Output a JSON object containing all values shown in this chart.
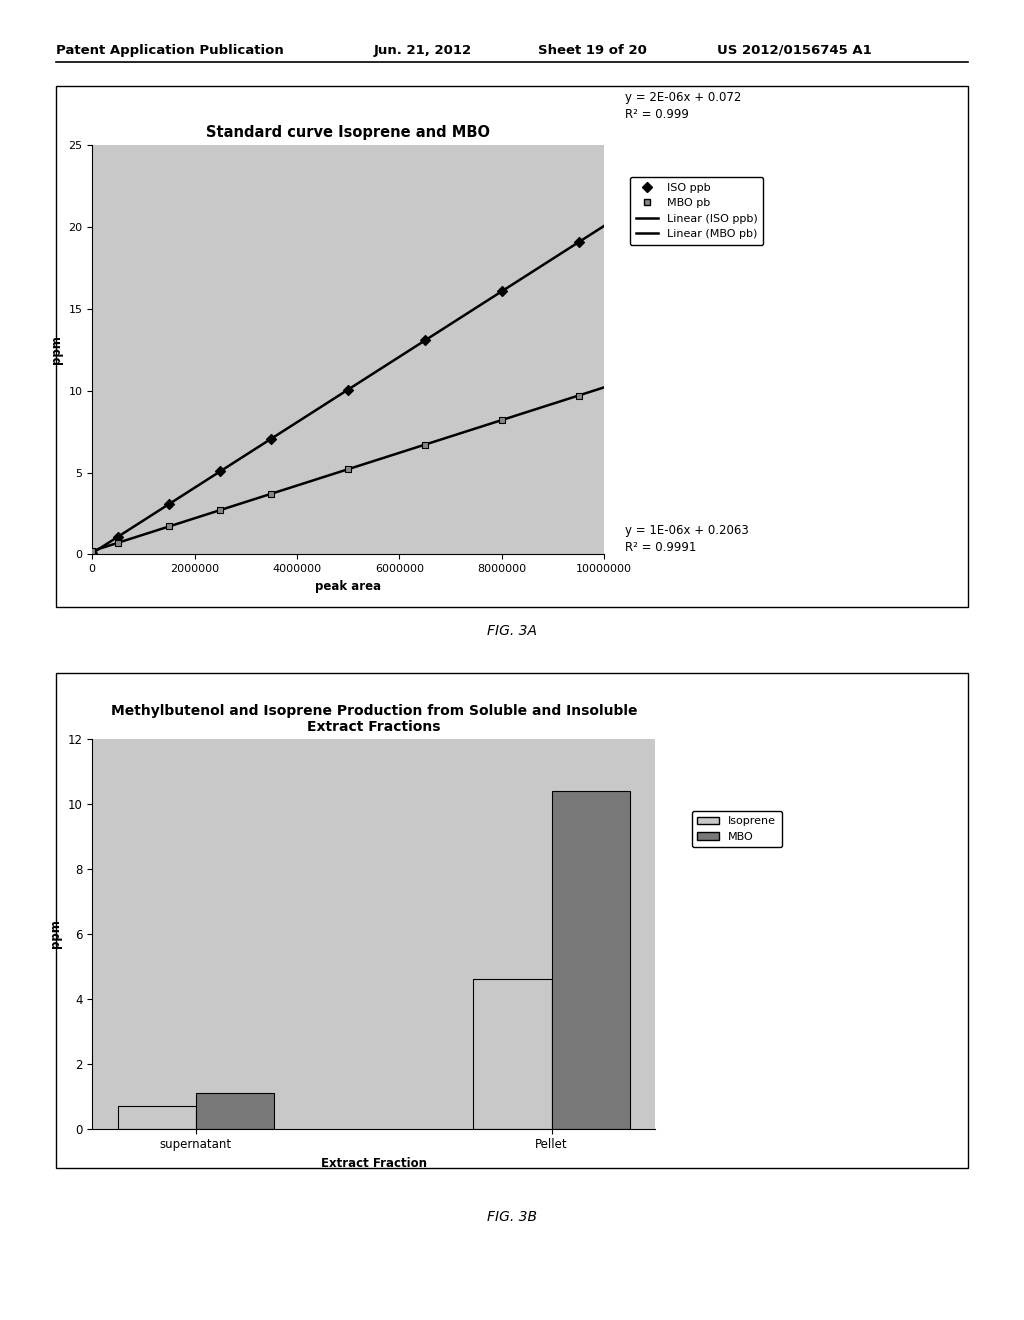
{
  "fig3a": {
    "title": "Standard curve Isoprene and MBO",
    "xlabel": "peak area",
    "ylabel": "ppm",
    "xlim": [
      0,
      10000000
    ],
    "ylim": [
      0,
      25
    ],
    "xticks": [
      0,
      2000000,
      4000000,
      6000000,
      8000000,
      10000000
    ],
    "yticks": [
      0,
      5,
      10,
      15,
      20,
      25
    ],
    "iso_slope": 2e-06,
    "iso_intercept": 0.072,
    "mbo_slope": 1e-06,
    "mbo_intercept": 0.2063,
    "eq1": "y = 2E-06x + 0.072",
    "r2_1": "R² = 0.999",
    "eq2": "y = 1E-06x + 0.2063",
    "r2_2": "R² = 0.9991",
    "legend_iso_scatter": "ISO ppb",
    "legend_mbo_scatter": "MBO pb",
    "legend_iso_linear": "Linear (ISO ppb)",
    "legend_mbo_linear": "Linear (MBO pb)",
    "bg_color": "#c8c8c8",
    "line_color": "#000000",
    "scatter_x": [
      0,
      500000,
      1500000,
      2500000,
      3500000,
      5000000,
      6500000,
      8000000,
      9500000
    ]
  },
  "fig3b": {
    "title": "Methylbutenol and Isoprene Production from Soluble and Insoluble\nExtract Fractions",
    "xlabel": "Extract Fraction",
    "ylabel": "ppm",
    "categories": [
      "supernatant",
      "Pellet"
    ],
    "isoprene_values": [
      0.7,
      4.6
    ],
    "mbo_values": [
      1.1,
      10.4
    ],
    "ylim": [
      0,
      12
    ],
    "yticks": [
      0,
      2,
      4,
      6,
      8,
      10,
      12
    ],
    "legend_isoprene": "Isoprene",
    "legend_mbo": "MBO",
    "isoprene_color": "#c8c8c8",
    "mbo_color": "#787878",
    "bg_color": "#c8c8c8"
  },
  "fig3a_label": "FIG. 3A",
  "fig3b_label": "FIG. 3B",
  "page_bg": "#ffffff",
  "header_left": "Patent Application Publication",
  "header_mid1": "Jun. 21, 2012",
  "header_mid2": "Sheet 19 of 20",
  "header_right": "US 2012/0156745 A1"
}
